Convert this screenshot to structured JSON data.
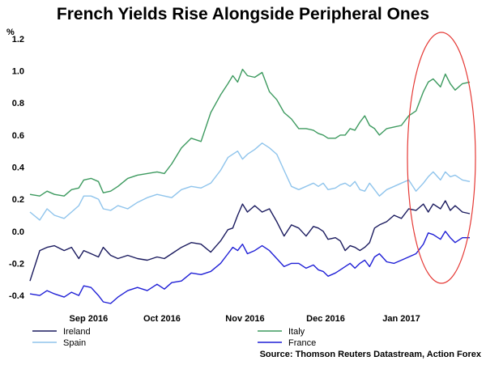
{
  "chart_data": {
    "type": "line",
    "title": "French Yields Rise Alongside Peripheral Ones",
    "ylabel": "%",
    "xlabel": "",
    "ylim": [
      -0.45,
      1.25
    ],
    "yticks": [
      "1.2",
      "1.0",
      "0.8",
      "0.6",
      "0.4",
      "0.2",
      "0.0",
      "-0.2",
      "-0.4"
    ],
    "ytick_values": [
      1.2,
      1.0,
      0.8,
      0.6,
      0.4,
      0.2,
      0.0,
      -0.2,
      -0.4
    ],
    "x_range": [
      0,
      180
    ],
    "xticks": [
      "Sep 2016",
      "Oct 2016",
      "Nov 2016",
      "Dec 2016",
      "Jan 2017"
    ],
    "xtick_positions": [
      24,
      54,
      88,
      121,
      152
    ],
    "source": "Source: Thomson Reuters Datastream, Action Forex",
    "annotation": "red ellipse highlighting January 2017",
    "colors": {
      "Ireland": "#1a1a5e",
      "Spain": "#8fc4ec",
      "Italy": "#3d9a5f",
      "France": "#1f1fd6",
      "highlight": "#e53935"
    },
    "series": [
      {
        "name": "Ireland",
        "x": [
          0,
          4,
          7,
          10,
          14,
          17,
          20,
          22,
          25,
          28,
          30,
          33,
          36,
          40,
          44,
          48,
          52,
          55,
          58,
          62,
          66,
          70,
          74,
          78,
          81,
          83,
          85,
          87,
          89,
          92,
          95,
          98,
          101,
          104,
          107,
          110,
          113,
          116,
          118,
          120,
          122,
          125,
          127,
          129,
          131,
          133,
          135,
          137,
          139,
          141,
          143,
          146,
          149,
          152,
          155,
          158,
          161,
          163,
          165,
          168,
          170,
          172,
          174,
          177,
          180
        ],
        "values": [
          -0.31,
          -0.12,
          -0.1,
          -0.09,
          -0.12,
          -0.1,
          -0.17,
          -0.12,
          -0.14,
          -0.16,
          -0.1,
          -0.15,
          -0.17,
          -0.15,
          -0.17,
          -0.18,
          -0.16,
          -0.17,
          -0.14,
          -0.1,
          -0.07,
          -0.08,
          -0.13,
          -0.06,
          0.01,
          0.02,
          0.1,
          0.17,
          0.12,
          0.16,
          0.12,
          0.14,
          0.06,
          -0.03,
          0.04,
          0.02,
          -0.03,
          0.03,
          0.02,
          0.0,
          -0.05,
          -0.04,
          -0.06,
          -0.12,
          -0.09,
          -0.1,
          -0.12,
          -0.1,
          -0.07,
          0.02,
          0.04,
          0.06,
          0.1,
          0.08,
          0.14,
          0.13,
          0.17,
          0.12,
          0.17,
          0.14,
          0.19,
          0.13,
          0.16,
          0.12,
          0.11
        ]
      },
      {
        "name": "Spain",
        "x": [
          0,
          4,
          7,
          10,
          14,
          17,
          20,
          22,
          25,
          28,
          30,
          33,
          36,
          40,
          44,
          48,
          52,
          55,
          58,
          62,
          66,
          70,
          74,
          78,
          81,
          83,
          85,
          87,
          89,
          92,
          95,
          98,
          101,
          104,
          107,
          110,
          113,
          116,
          118,
          120,
          122,
          125,
          127,
          129,
          131,
          133,
          135,
          137,
          139,
          141,
          143,
          146,
          149,
          152,
          155,
          158,
          161,
          163,
          165,
          168,
          170,
          172,
          174,
          177,
          180
        ],
        "values": [
          0.12,
          0.07,
          0.14,
          0.1,
          0.08,
          0.12,
          0.16,
          0.22,
          0.22,
          0.2,
          0.14,
          0.13,
          0.16,
          0.14,
          0.18,
          0.21,
          0.23,
          0.22,
          0.21,
          0.26,
          0.28,
          0.27,
          0.3,
          0.38,
          0.46,
          0.48,
          0.5,
          0.45,
          0.48,
          0.51,
          0.55,
          0.52,
          0.48,
          0.38,
          0.28,
          0.26,
          0.28,
          0.3,
          0.28,
          0.3,
          0.26,
          0.27,
          0.29,
          0.3,
          0.28,
          0.31,
          0.26,
          0.25,
          0.3,
          0.26,
          0.22,
          0.26,
          0.28,
          0.3,
          0.32,
          0.25,
          0.3,
          0.34,
          0.37,
          0.32,
          0.37,
          0.34,
          0.35,
          0.32,
          0.31
        ]
      },
      {
        "name": "Italy",
        "x": [
          0,
          4,
          7,
          10,
          14,
          17,
          20,
          22,
          25,
          28,
          30,
          33,
          36,
          40,
          44,
          48,
          52,
          55,
          58,
          62,
          66,
          70,
          74,
          78,
          81,
          83,
          85,
          87,
          89,
          92,
          95,
          98,
          101,
          104,
          107,
          110,
          113,
          116,
          118,
          120,
          122,
          125,
          127,
          129,
          131,
          133,
          135,
          137,
          139,
          141,
          143,
          146,
          149,
          152,
          155,
          158,
          161,
          163,
          165,
          168,
          170,
          172,
          174,
          177,
          180
        ],
        "values": [
          0.23,
          0.22,
          0.25,
          0.23,
          0.22,
          0.26,
          0.27,
          0.32,
          0.33,
          0.31,
          0.24,
          0.25,
          0.28,
          0.33,
          0.35,
          0.36,
          0.37,
          0.36,
          0.42,
          0.52,
          0.58,
          0.56,
          0.74,
          0.85,
          0.92,
          0.97,
          0.93,
          1.01,
          0.97,
          0.96,
          0.99,
          0.87,
          0.82,
          0.74,
          0.7,
          0.64,
          0.64,
          0.63,
          0.61,
          0.6,
          0.58,
          0.58,
          0.6,
          0.6,
          0.64,
          0.63,
          0.68,
          0.72,
          0.66,
          0.64,
          0.6,
          0.64,
          0.65,
          0.66,
          0.72,
          0.75,
          0.87,
          0.93,
          0.95,
          0.9,
          0.98,
          0.92,
          0.88,
          0.92,
          0.93
        ]
      },
      {
        "name": "France",
        "x": [
          0,
          4,
          7,
          10,
          14,
          17,
          20,
          22,
          25,
          28,
          30,
          33,
          36,
          40,
          44,
          48,
          52,
          55,
          58,
          62,
          66,
          70,
          74,
          78,
          81,
          83,
          85,
          87,
          89,
          92,
          95,
          98,
          101,
          104,
          107,
          110,
          113,
          116,
          118,
          120,
          122,
          125,
          127,
          129,
          131,
          133,
          135,
          137,
          139,
          141,
          143,
          146,
          149,
          152,
          155,
          158,
          161,
          163,
          165,
          168,
          170,
          172,
          174,
          177,
          180
        ],
        "values": [
          -0.39,
          -0.4,
          -0.37,
          -0.39,
          -0.41,
          -0.38,
          -0.4,
          -0.34,
          -0.35,
          -0.4,
          -0.44,
          -0.45,
          -0.41,
          -0.37,
          -0.35,
          -0.37,
          -0.33,
          -0.36,
          -0.32,
          -0.31,
          -0.26,
          -0.27,
          -0.25,
          -0.2,
          -0.14,
          -0.1,
          -0.12,
          -0.08,
          -0.14,
          -0.12,
          -0.09,
          -0.12,
          -0.17,
          -0.22,
          -0.2,
          -0.2,
          -0.23,
          -0.21,
          -0.24,
          -0.25,
          -0.28,
          -0.26,
          -0.24,
          -0.22,
          -0.2,
          -0.23,
          -0.2,
          -0.18,
          -0.22,
          -0.16,
          -0.14,
          -0.19,
          -0.2,
          -0.18,
          -0.16,
          -0.14,
          -0.08,
          -0.01,
          -0.02,
          -0.05,
          0.0,
          -0.04,
          -0.07,
          -0.04,
          -0.04
        ]
      }
    ]
  }
}
